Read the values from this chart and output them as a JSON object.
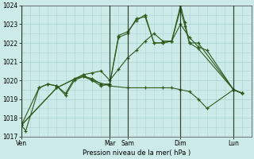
{
  "background_color": "#cceae7",
  "grid_color": "#aad4d0",
  "line_color": "#2d5a1b",
  "title": "Pression niveau de la mer( hPa )",
  "ylim": [
    1017,
    1024
  ],
  "yticks": [
    1017,
    1018,
    1019,
    1020,
    1021,
    1022,
    1023,
    1024
  ],
  "day_labels": [
    "Ven",
    "Mar",
    "Sam",
    "Dim",
    "Lun"
  ],
  "day_positions": [
    0,
    10,
    12,
    18,
    24
  ],
  "xlim": [
    0,
    26
  ],
  "series1_x": [
    0,
    0.5,
    2,
    3,
    4,
    5,
    6,
    7,
    8,
    9,
    10,
    11,
    12,
    13,
    14,
    15,
    16,
    17,
    18,
    18.5,
    19,
    20,
    24,
    25
  ],
  "series1_y": [
    1017.6,
    1017.3,
    1019.6,
    1019.8,
    1019.7,
    1019.2,
    1020.0,
    1020.2,
    1020.1,
    1019.8,
    1019.8,
    1022.4,
    1022.6,
    1023.2,
    1023.5,
    1022.0,
    1022.0,
    1022.1,
    1023.8,
    1022.9,
    1022.0,
    1022.0,
    1019.5,
    1019.3
  ],
  "series2_x": [
    0,
    2,
    3,
    4,
    5,
    6,
    7,
    8,
    9,
    10,
    11,
    12,
    13,
    14,
    15,
    16,
    17,
    18,
    18.5,
    19,
    20,
    24,
    25
  ],
  "series2_y": [
    1017.6,
    1019.6,
    1019.8,
    1019.7,
    1019.3,
    1020.1,
    1020.2,
    1020.0,
    1019.7,
    1019.8,
    1022.3,
    1022.5,
    1023.3,
    1023.4,
    1022.0,
    1022.0,
    1022.1,
    1024.0,
    1023.1,
    1022.0,
    1021.7,
    1019.5,
    1019.3
  ],
  "series3_x": [
    0,
    4,
    7,
    8,
    9,
    10,
    11,
    12,
    13,
    14,
    15,
    16,
    17,
    18,
    19,
    20,
    21,
    24,
    25
  ],
  "series3_y": [
    1017.6,
    1019.6,
    1020.3,
    1020.4,
    1020.5,
    1020.0,
    1020.6,
    1021.2,
    1021.6,
    1022.1,
    1022.5,
    1022.1,
    1022.1,
    1023.0,
    1022.3,
    1021.8,
    1021.6,
    1019.5,
    1019.3
  ],
  "series4_x": [
    0,
    4,
    7,
    8,
    10,
    12,
    14,
    16,
    17,
    18,
    19,
    20,
    21,
    24,
    25
  ],
  "series4_y": [
    1017.6,
    1019.6,
    1020.3,
    1020.0,
    1019.7,
    1019.6,
    1019.6,
    1019.6,
    1019.6,
    1019.5,
    1019.4,
    1019.0,
    1018.5,
    1019.5,
    1019.3
  ],
  "vlines": [
    0,
    10,
    12,
    18,
    24
  ]
}
